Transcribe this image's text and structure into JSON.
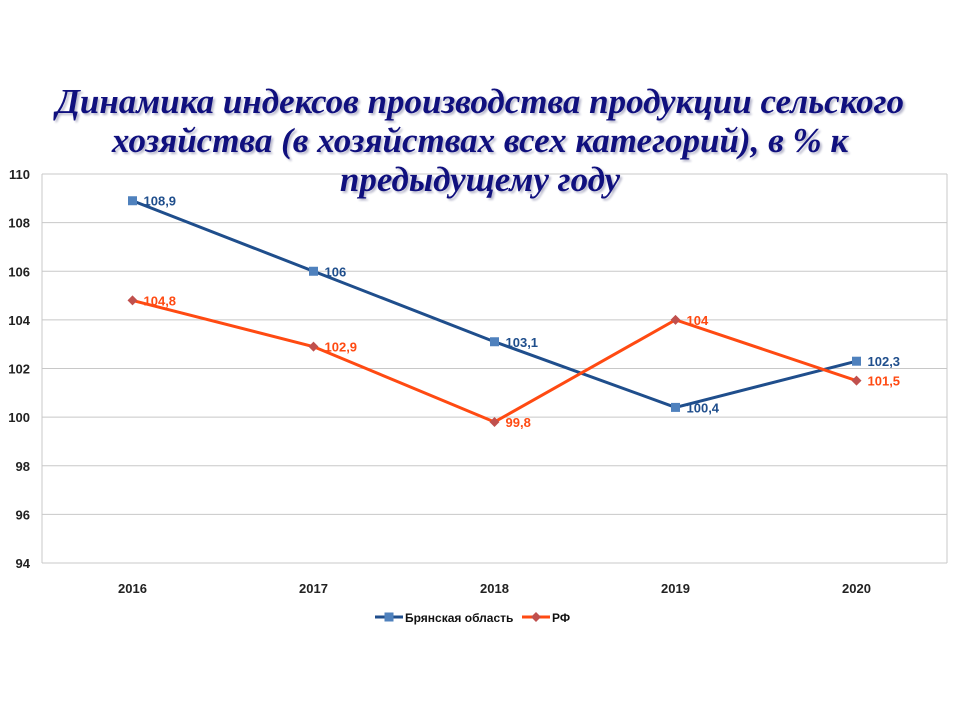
{
  "chart_data": {
    "type": "line",
    "title": "Динамика индексов производства продукции сельского хозяйства (в хозяйствах всех категорий), в % к предыдущему году",
    "title_lines": [
      "Динамика индексов производства продукции сельского",
      "хозяйства (в хозяйствах всех категорий), в % к",
      "предыдущему году"
    ],
    "categories": [
      "2016",
      "2017",
      "2018",
      "2019",
      "2020"
    ],
    "ylim": [
      94,
      110
    ],
    "yticks": [
      94,
      96,
      98,
      100,
      102,
      104,
      106,
      108,
      110
    ],
    "grid": true,
    "legend_position": "bottom",
    "xlabel": "",
    "ylabel": "",
    "series": [
      {
        "name": "Брянская область",
        "values": [
          108.9,
          106,
          103.1,
          100.4,
          102.3
        ],
        "labels": [
          "108,9",
          "106",
          "103,1",
          "100,4",
          "102,3"
        ],
        "color": "#1f4e8c",
        "marker_color": "#4f81bd",
        "marker": "square"
      },
      {
        "name": "РФ",
        "values": [
          104.8,
          102.9,
          99.8,
          104,
          101.5
        ],
        "labels": [
          "104,8",
          "102,9",
          "99,8",
          "104",
          "101,5"
        ],
        "color": "#ff4a12",
        "marker_color": "#c0504d",
        "marker": "diamond"
      }
    ]
  }
}
